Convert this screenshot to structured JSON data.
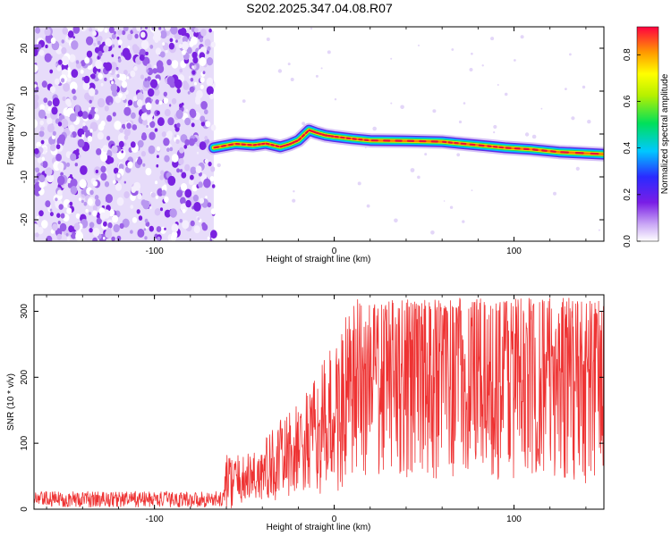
{
  "title": "S202.2025.347.04.08.R07",
  "chart_data": [
    {
      "type": "heatmap",
      "name": "spectrogram",
      "xlabel": "Height of straight line (km)",
      "ylabel": "Frequency (Hz)",
      "xlim": [
        -167,
        150
      ],
      "ylim": [
        -25,
        25
      ],
      "xticks": [
        -100,
        0,
        100
      ],
      "yticks": [
        -20,
        -10,
        0,
        10,
        20
      ],
      "xtick_labels": [
        "-100",
        "0",
        "100"
      ],
      "ytick_labels": [
        "-20",
        "-10",
        "0",
        "10",
        "20"
      ],
      "noise_region_x": [
        -167,
        -67
      ],
      "signal_start_x": -67,
      "ridge": [
        {
          "x": -67,
          "y": -3.2
        },
        {
          "x": -55,
          "y": -2.3
        },
        {
          "x": -45,
          "y": -2.6
        },
        {
          "x": -38,
          "y": -2.2
        },
        {
          "x": -30,
          "y": -3.0
        },
        {
          "x": -25,
          "y": -2.4
        },
        {
          "x": -20,
          "y": -1.5
        },
        {
          "x": -14,
          "y": 0.9
        },
        {
          "x": -10,
          "y": 0.3
        },
        {
          "x": -5,
          "y": -0.3
        },
        {
          "x": 0,
          "y": -0.6
        },
        {
          "x": 10,
          "y": -1.1
        },
        {
          "x": 20,
          "y": -1.5
        },
        {
          "x": 40,
          "y": -1.6
        },
        {
          "x": 60,
          "y": -1.8
        },
        {
          "x": 70,
          "y": -2.2
        },
        {
          "x": 85,
          "y": -2.8
        },
        {
          "x": 95,
          "y": -3.2
        },
        {
          "x": 110,
          "y": -3.6
        },
        {
          "x": 125,
          "y": -4.2
        },
        {
          "x": 150,
          "y": -4.7
        }
      ],
      "colorbar": {
        "label": "Normalized spectral amplitude",
        "range": [
          0,
          0.92
        ],
        "ticks": [
          0.0,
          0.2,
          0.4,
          0.6,
          0.8
        ],
        "tick_labels": [
          "0.0",
          "0.2",
          "0.4",
          "0.6",
          "0.8"
        ]
      }
    },
    {
      "type": "line",
      "name": "snr",
      "xlabel": "Height of straight line (km)",
      "ylabel": "SNR (10 * v/v)",
      "xlim": [
        -167,
        150
      ],
      "ylim": [
        0,
        325
      ],
      "xticks": [
        -100,
        0,
        100
      ],
      "yticks": [
        0,
        100,
        200,
        300
      ],
      "xtick_labels": [
        "-100",
        "0",
        "100"
      ],
      "ytick_labels": [
        "0",
        "100",
        "200",
        "300"
      ],
      "color": "#ee3333",
      "envelope": [
        {
          "x": -167,
          "mean": 15,
          "spread": 12
        },
        {
          "x": -62,
          "mean": 15,
          "spread": 12
        },
        {
          "x": -60,
          "mean": 40,
          "spread": 45
        },
        {
          "x": -50,
          "mean": 45,
          "spread": 35
        },
        {
          "x": -40,
          "mean": 55,
          "spread": 50
        },
        {
          "x": -30,
          "mean": 75,
          "spread": 60
        },
        {
          "x": -20,
          "mean": 90,
          "spread": 70
        },
        {
          "x": -10,
          "mean": 110,
          "spread": 90
        },
        {
          "x": 0,
          "mean": 140,
          "spread": 120
        },
        {
          "x": 10,
          "mean": 170,
          "spread": 140
        },
        {
          "x": 20,
          "mean": 200,
          "spread": 160
        },
        {
          "x": 40,
          "mean": 210,
          "spread": 170
        },
        {
          "x": 80,
          "mean": 215,
          "spread": 170
        },
        {
          "x": 120,
          "mean": 210,
          "spread": 170
        },
        {
          "x": 150,
          "mean": 205,
          "spread": 170
        }
      ]
    }
  ]
}
